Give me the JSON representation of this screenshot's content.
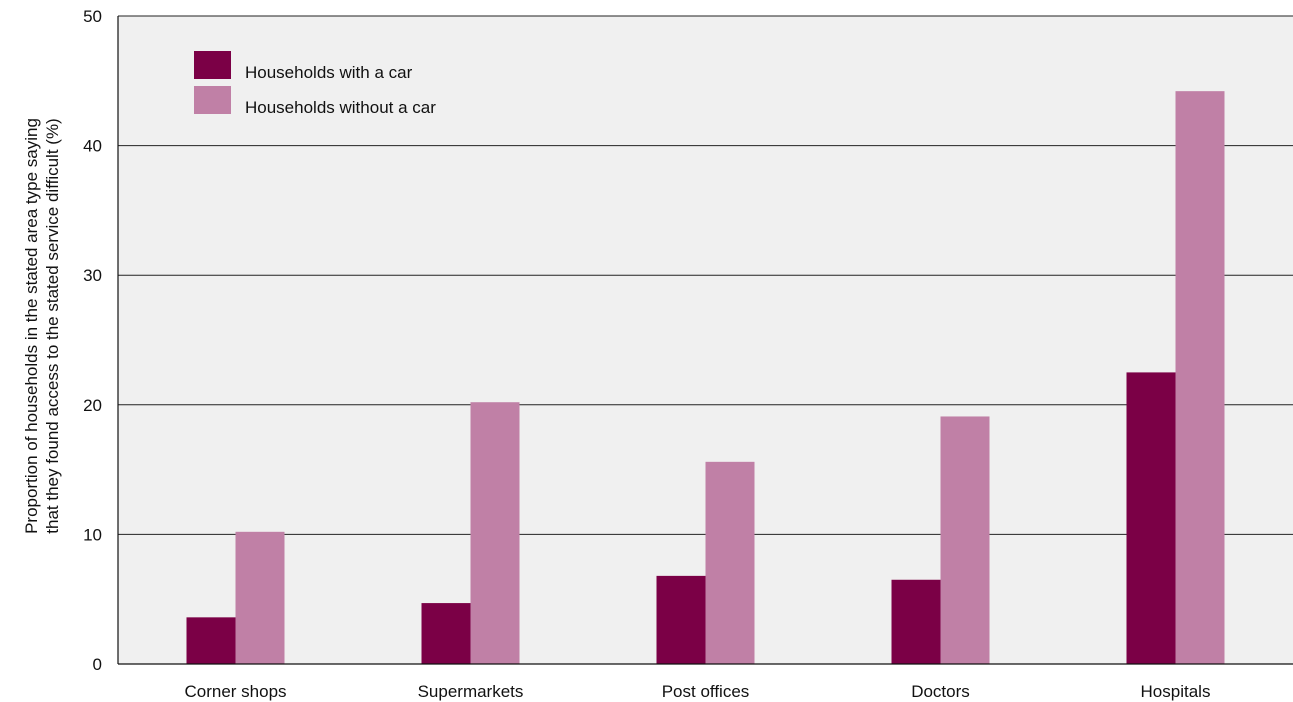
{
  "chart_data": {
    "type": "bar",
    "title": "",
    "xlabel": "",
    "ylabel_lines": [
      "Proportion of households in the stated area type saying",
      "that they found access to the stated service difficult (%)"
    ],
    "categories": [
      "Corner shops",
      "Supermarkets",
      "Post offices",
      "Doctors",
      "Hospitals"
    ],
    "series": [
      {
        "name": "Households with a car",
        "color": "#7b0046",
        "values": [
          3.6,
          4.7,
          6.8,
          6.5,
          22.5
        ]
      },
      {
        "name": "Households without a car",
        "color": "#c080a6",
        "values": [
          10.2,
          20.2,
          15.6,
          19.1,
          44.2
        ]
      }
    ],
    "ylim": [
      0,
      50
    ],
    "yticks": [
      "0",
      "10",
      "20",
      "30",
      "40",
      "50"
    ],
    "grid": true,
    "legend": "top-left",
    "plot_background": "#f0f0f0"
  }
}
